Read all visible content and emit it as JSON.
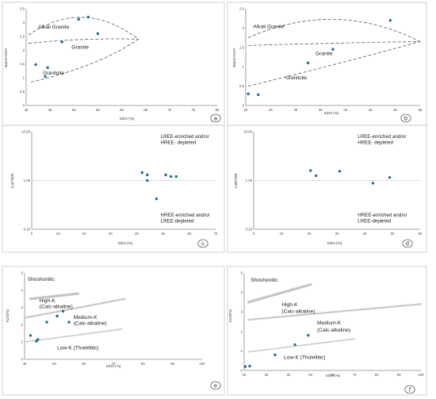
{
  "chart_data": [
    {
      "id": "a",
      "type": "scatter",
      "xlabel": "SiO2 (%)",
      "ylabel": "Na2O+K2O",
      "xlim": [
        40,
        80
      ],
      "ylim": [
        0,
        3.5
      ],
      "xticks": [
        "40",
        "45",
        "50",
        "55",
        "60",
        "65",
        "70",
        "75",
        "80"
      ],
      "yticks": [
        "0",
        "0.5",
        "1",
        "1.5",
        "2",
        "2.5",
        "3",
        "3.5"
      ],
      "fields": [
        "Alkali Granite",
        "Granite",
        "Granitoite"
      ],
      "points": [
        [
          42,
          1.48
        ],
        [
          44,
          1.05
        ],
        [
          44.5,
          1.37
        ],
        [
          47.5,
          2.3
        ],
        [
          51,
          3.12
        ],
        [
          53,
          3.2
        ],
        [
          55,
          2.6
        ]
      ],
      "panel_label": "a"
    },
    {
      "id": "b",
      "type": "scatter",
      "xlabel": "SiO2 (%)",
      "ylabel": "Na2O+K2O",
      "xlim": [
        20,
        55
      ],
      "ylim": [
        0,
        2.5
      ],
      "xticks": [
        "20",
        "25",
        "30",
        "35",
        "40",
        "45",
        "50",
        "55"
      ],
      "yticks": [
        "0",
        "0.5",
        "1",
        "1.5",
        "2",
        "2.5"
      ],
      "fields": [
        "Alkali Granite",
        "Granite",
        "Granitoite"
      ],
      "points": [
        [
          20.5,
          0.3
        ],
        [
          22.5,
          0.28
        ],
        [
          32.5,
          1.1
        ],
        [
          37.5,
          1.45
        ],
        [
          49,
          2.2
        ]
      ],
      "panel_label": "b"
    },
    {
      "id": "c",
      "type": "scatter",
      "xlabel": "SiO2 (%)",
      "ylabel": "(La/Yb)N",
      "yscale": "log",
      "xlim": [
        0,
        70
      ],
      "ylim": [
        0.1,
        10
      ],
      "xticks": [
        "0",
        "10",
        "20",
        "30",
        "40",
        "50",
        "60",
        "70"
      ],
      "yticks": [
        "0.10",
        "1.00",
        "10.00"
      ],
      "annot_top": [
        "LREE-enriched and/or",
        "HREE- depleted"
      ],
      "annot_bottom": [
        "HREE-enriched and/or",
        "LREE-depleted"
      ],
      "points": [
        [
          42,
          1.45
        ],
        [
          44,
          1.3
        ],
        [
          44,
          1.0
        ],
        [
          47.5,
          0.42
        ],
        [
          51,
          1.3
        ],
        [
          53,
          1.2
        ],
        [
          55,
          1.2
        ]
      ],
      "panel_label": "c"
    },
    {
      "id": "d",
      "type": "scatter",
      "xlabel": "SiO2 (%)",
      "ylabel": "LaN/YbN",
      "yscale": "log",
      "xlim": [
        0,
        60
      ],
      "ylim": [
        0.1,
        10
      ],
      "xticks": [
        "0",
        "10",
        "20",
        "30",
        "40",
        "50",
        "60"
      ],
      "yticks": [
        "0.10",
        "1.00",
        "10.00"
      ],
      "annot_top": [
        "LREE-enriched and/or",
        "HREE- depleted"
      ],
      "annot_bottom": [
        "HREE-enriched and/or",
        "LREE-depleted"
      ],
      "points": [
        [
          20.5,
          1.6
        ],
        [
          22.5,
          1.25
        ],
        [
          31,
          1.55
        ],
        [
          43,
          0.88
        ],
        [
          49,
          1.15
        ]
      ],
      "panel_label": "d"
    },
    {
      "id": "e",
      "type": "scatter",
      "xlabel": "SiO2 (%)",
      "ylabel": "K2O(%)",
      "xlim": [
        40,
        100
      ],
      "ylim": [
        0,
        5
      ],
      "xticks": [
        "40",
        "50",
        "60",
        "70",
        "80",
        "90",
        "100"
      ],
      "yticks": [
        "0",
        "1",
        "2",
        "3",
        "4",
        "5"
      ],
      "series_labels": [
        "Shoshonitic",
        "High-K",
        "(Calc-alkaline)",
        "Medium-K",
        "(Calc-alkaline)",
        "Low-K (Tholellitic)"
      ],
      "points": [
        [
          42,
          1.38
        ],
        [
          44,
          1.05
        ],
        [
          44.5,
          1.15
        ],
        [
          47.5,
          2.15
        ],
        [
          51,
          2.5
        ],
        [
          53,
          2.78
        ],
        [
          55,
          2.15
        ]
      ],
      "panel_label": "e"
    },
    {
      "id": "f",
      "type": "scatter",
      "xlabel": "SiO2 (%)",
      "ylabel": "K2O(%)",
      "xlim": [
        20,
        100
      ],
      "ylim": [
        0,
        5
      ],
      "xticks": [
        "20",
        "30",
        "40",
        "50",
        "60",
        "70",
        "80",
        "90",
        "100"
      ],
      "yticks": [
        "0",
        "1",
        "2",
        "3",
        "4",
        "5"
      ],
      "series_labels": [
        "Shoshonitic",
        "High-K",
        "(Calc-alkaline)",
        "Medium-K",
        "(Calc-alkaline)",
        "Low-K (Tholellitic)"
      ],
      "points": [
        [
          20.5,
          0.2
        ],
        [
          22.5,
          0.22
        ],
        [
          34,
          0.8
        ],
        [
          43,
          1.32
        ],
        [
          49,
          1.8
        ]
      ],
      "panel_label": "f"
    }
  ]
}
